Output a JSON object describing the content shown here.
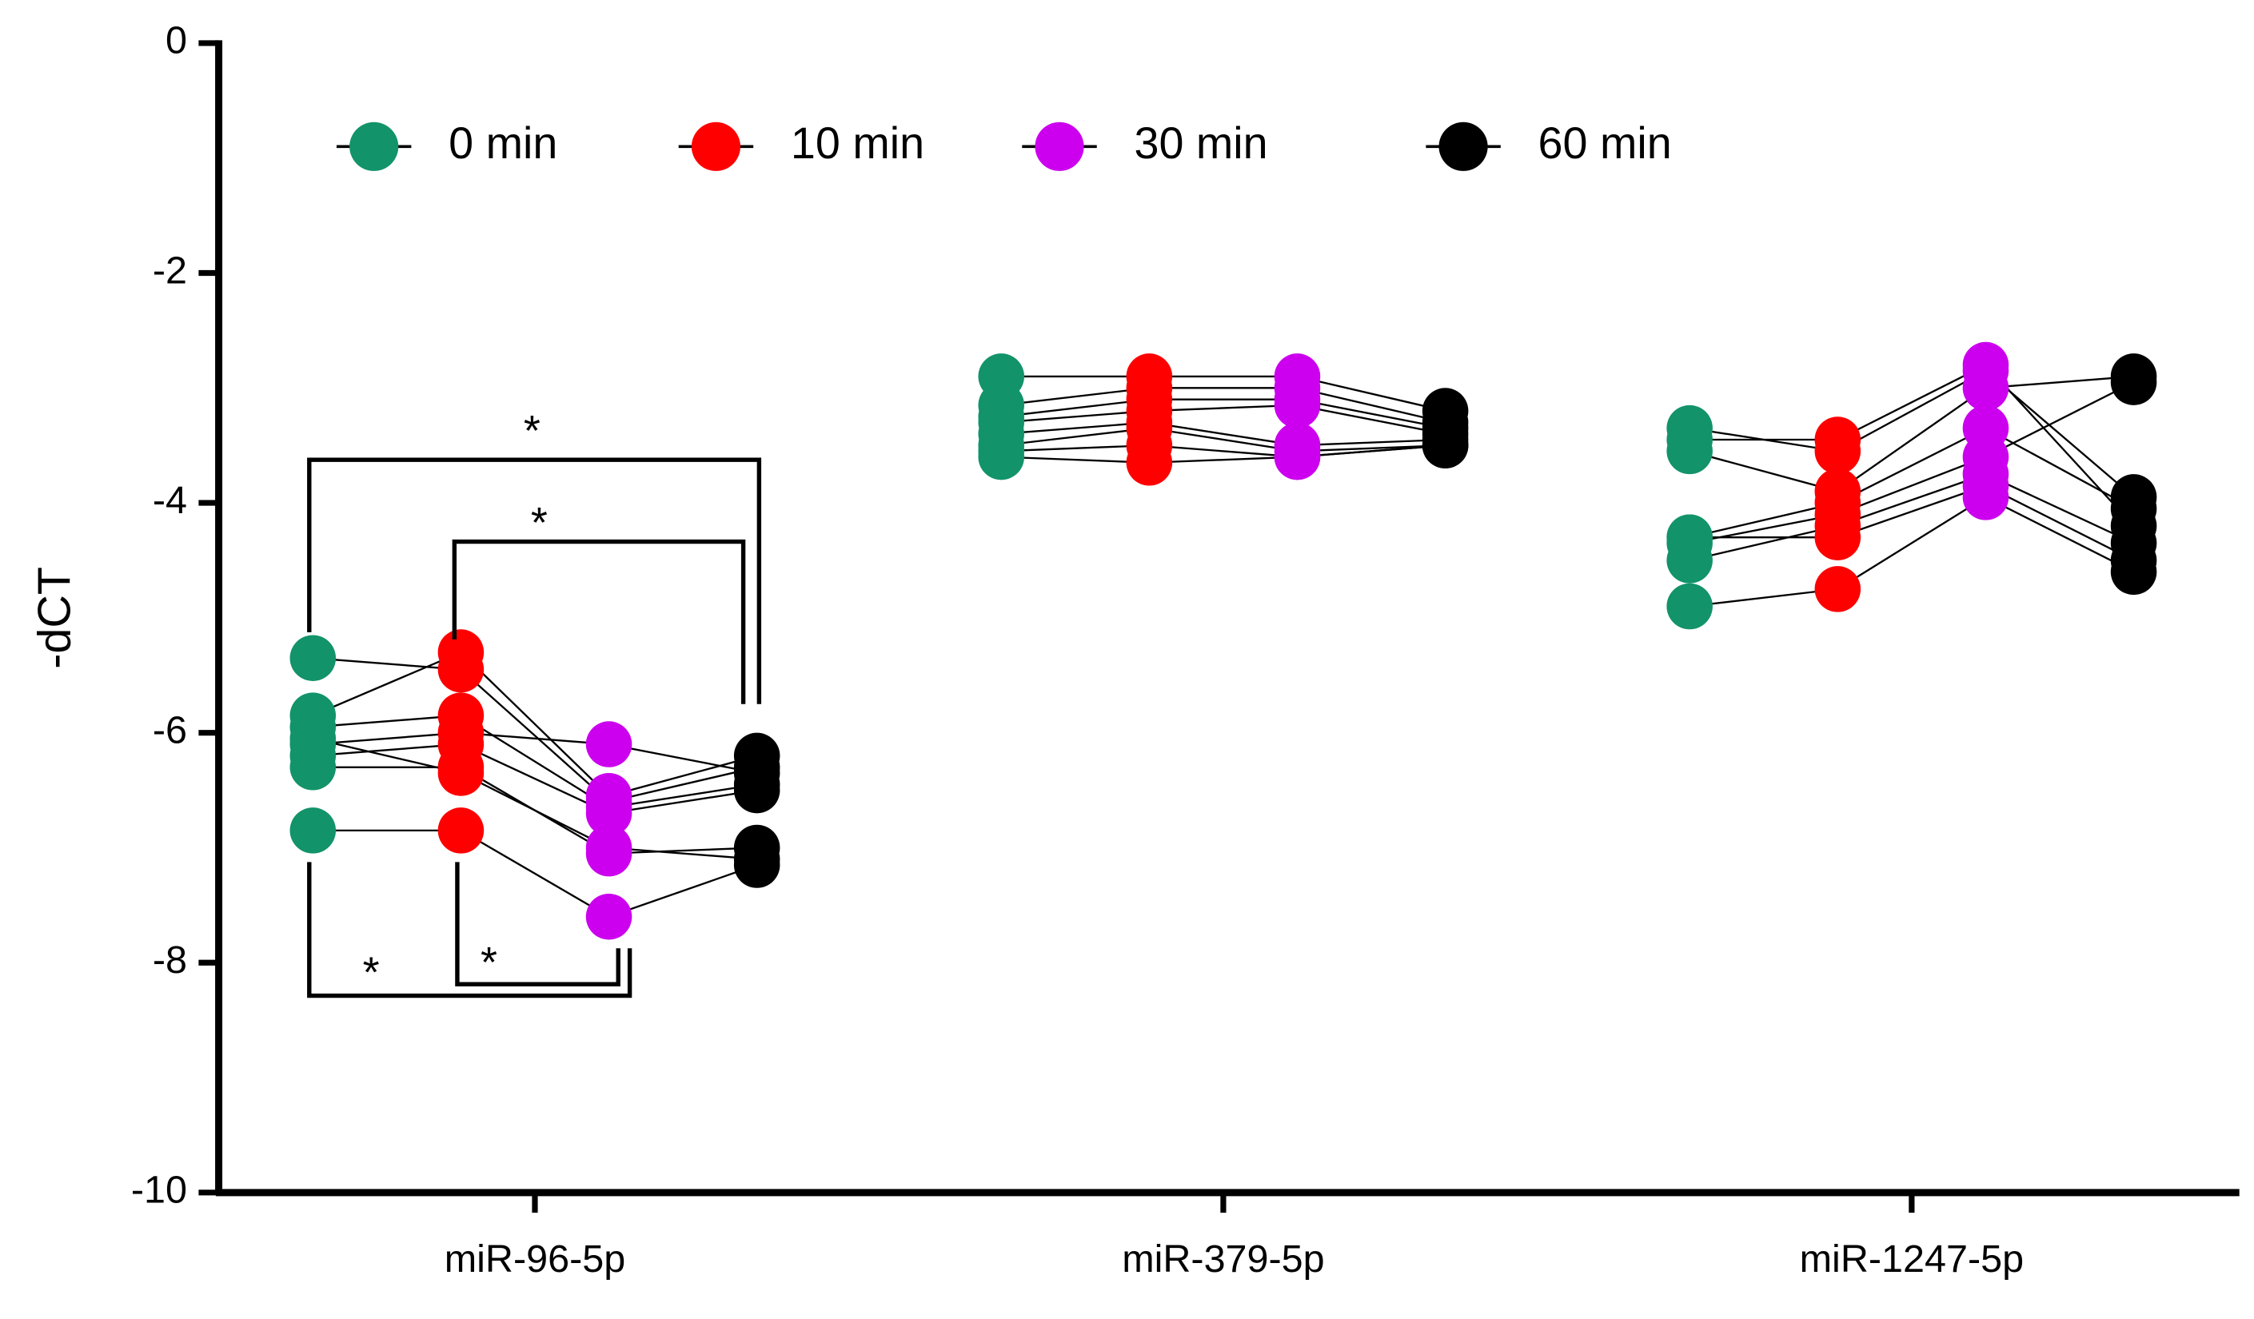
{
  "chart_data": {
    "type": "paired-dot",
    "ylabel": "-dCT",
    "categories": [
      "miR-96-5p",
      "miR-379-5p",
      "miR-1247-5p"
    ],
    "ylim": [
      -10,
      0
    ],
    "yticks": [
      0,
      -2,
      -4,
      -6,
      -8,
      -10
    ],
    "legend": "top",
    "series": [
      {
        "name": "0 min",
        "color": "#12936a",
        "values": [
          [
            -5.35,
            -5.85,
            -5.95,
            -6.1,
            -6.2,
            -6.3,
            -6.05,
            -6.85
          ],
          [
            -2.9,
            -3.15,
            -3.25,
            -3.3,
            -3.4,
            -3.5,
            -3.55,
            -3.6
          ],
          [
            -3.35,
            -3.45,
            -3.55,
            -4.3,
            -4.35,
            -4.5,
            -4.3,
            -4.9
          ]
        ]
      },
      {
        "name": "10 min",
        "color": "#ff0000",
        "values": [
          [
            -5.45,
            -5.3,
            -5.85,
            -6.0,
            -6.1,
            -6.3,
            -6.35,
            -6.85
          ],
          [
            -2.9,
            -3.0,
            -3.1,
            -3.2,
            -3.3,
            -3.35,
            -3.5,
            -3.65
          ],
          [
            -3.55,
            -3.45,
            -3.9,
            -4.0,
            -4.1,
            -4.2,
            -4.3,
            -4.75
          ]
        ]
      },
      {
        "name": "30 min",
        "color": "#cc00ee",
        "values": [
          [
            -6.6,
            -6.55,
            -6.65,
            -6.1,
            -6.7,
            -7.05,
            -7.0,
            -7.6
          ],
          [
            -2.9,
            -3.0,
            -3.1,
            -3.15,
            -3.5,
            -3.55,
            -3.6,
            -3.6
          ],
          [
            -2.85,
            -2.8,
            -3.0,
            -3.35,
            -3.6,
            -3.75,
            -3.85,
            -3.95
          ]
        ]
      },
      {
        "name": "60 min",
        "color": "#000000",
        "values": [
          [
            -6.3,
            -6.2,
            -6.45,
            -6.35,
            -6.5,
            -7.0,
            -7.1,
            -7.15
          ],
          [
            -3.2,
            -3.3,
            -3.35,
            -3.4,
            -3.45,
            -3.5,
            -3.5,
            -3.5
          ],
          [
            -3.95,
            -4.2,
            -2.9,
            -4.05,
            -2.95,
            -4.35,
            -4.5,
            -4.6
          ]
        ]
      }
    ],
    "annotations": [
      "*",
      "*",
      "*",
      "*"
    ]
  }
}
